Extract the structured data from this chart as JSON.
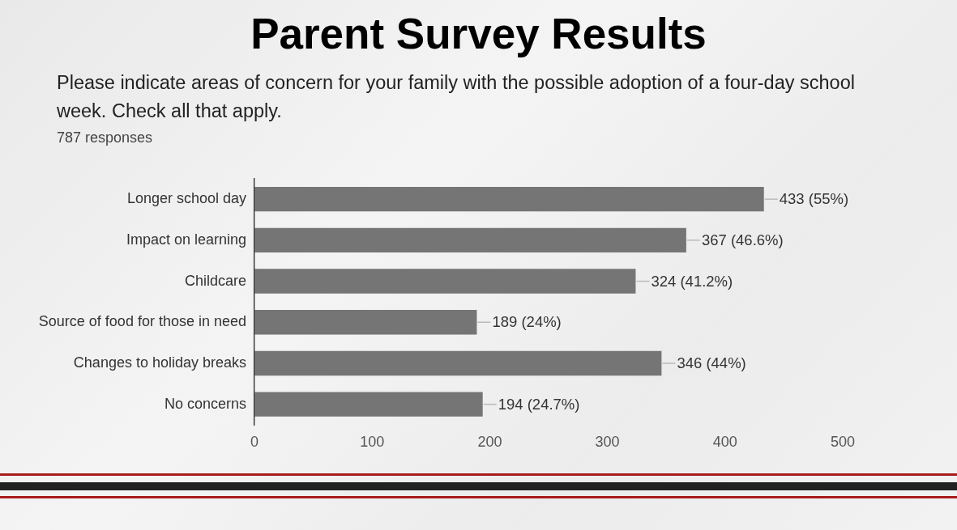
{
  "chart_data": {
    "type": "bar",
    "orientation": "horizontal",
    "title": "Parent Survey Results",
    "subtitle": "Please indicate areas of concern for your family with the possible adoption of a four-day school week. Check all that apply.",
    "annotations": [
      "787 responses"
    ],
    "categories": [
      "Longer school day",
      "Impact on learning",
      "Childcare",
      "Source of food for those in need",
      "Changes to holiday breaks",
      "No concerns"
    ],
    "values": [
      433,
      367,
      324,
      189,
      346,
      194
    ],
    "color": "#757575",
    "value_labels": [
      "433 (55%)",
      "367 (46.6%)",
      "324 (41.2%)",
      "189 (24%)",
      "346 (44%)",
      "194 (24.7%)"
    ],
    "xlim": [
      0,
      500
    ],
    "xticks": [
      0,
      100,
      200,
      300,
      400,
      500
    ],
    "grid": false,
    "legend": false
  }
}
